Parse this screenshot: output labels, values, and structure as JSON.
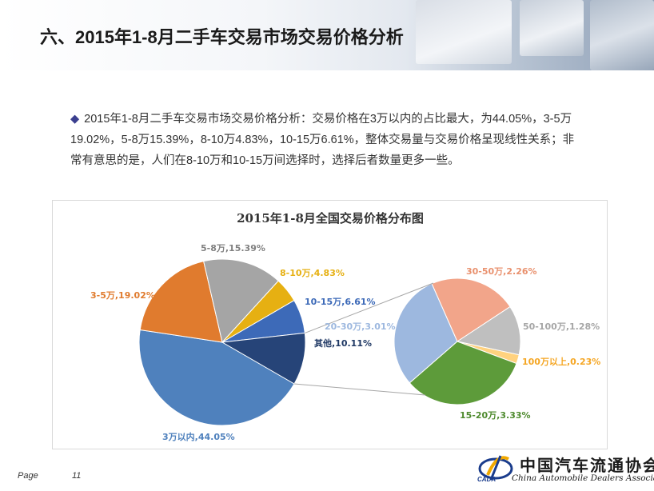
{
  "header": {
    "title": "六、2015年1-8月二手车交易市场交易价格分析"
  },
  "paragraph": {
    "bullet": "◆",
    "text": "2015年1-8月二手车交易市场交易价格分析：交易价格在3万以内的占比最大，为44.05%，3-5万19.02%，5-8万15.39%，8-10万4.83%，10-15万6.61%，整体交易量与交易价格呈现线性关系；非常有意思的是，人们在8-10万和10-15万间选择时，选择后者数量更多一些。"
  },
  "footer": {
    "page_label": "Page",
    "page_number": "11"
  },
  "logo": {
    "cn": "中国汽车流通协会",
    "en": "China Automobile Dealers Association",
    "abbr": "CADA"
  },
  "chart_data": {
    "type": "pie",
    "title": "2015年1-8月全国交易价格分布图",
    "main_pie": [
      {
        "label": "3万以内,44.05%",
        "name": "3万以内",
        "value": 44.05,
        "color": "#4f81bd"
      },
      {
        "label": "3-5万,19.02%",
        "name": "3-5万",
        "value": 19.02,
        "color": "#e07b2e"
      },
      {
        "label": "5-8万,15.39%",
        "name": "5-8万",
        "value": 15.39,
        "color": "#a5a5a5"
      },
      {
        "label": "8-10万,4.83%",
        "name": "8-10万",
        "value": 4.83,
        "color": "#e6b012"
      },
      {
        "label": "10-15万,6.61%",
        "name": "10-15万",
        "value": 6.61,
        "color": "#3d6ab8"
      },
      {
        "label": "其他,10.11%",
        "name": "其他",
        "value": 10.11,
        "color": "#264478"
      }
    ],
    "sub_pie": [
      {
        "label": "20-30万,3.01%",
        "name": "20-30万",
        "value": 3.01,
        "color": "#9db8df"
      },
      {
        "label": "30-50万,2.26%",
        "name": "30-50万",
        "value": 2.26,
        "color": "#f2a58a"
      },
      {
        "label": "50-100万,1.28%",
        "name": "50-100万",
        "value": 1.28,
        "color": "#bfbfbf"
      },
      {
        "label": "100万以上,0.23%",
        "name": "100万以上",
        "value": 0.23,
        "color": "#ffd27f"
      },
      {
        "label": "15-20万,3.33%",
        "name": "15-20万",
        "value": 3.33,
        "color": "#5d9b3a"
      }
    ],
    "label_colors": {
      "3万以内": "#4f81bd",
      "3-5万": "#e07b2e",
      "5-8万": "#808080",
      "8-10万": "#e6b012",
      "10-15万": "#3d6ab8",
      "其他": "#1f3864",
      "20-30万": "#9db8df",
      "30-50万": "#e9916e",
      "50-100万": "#a6a6a6",
      "100万以上": "#f5a623",
      "15-20万": "#4e8a2e"
    }
  }
}
